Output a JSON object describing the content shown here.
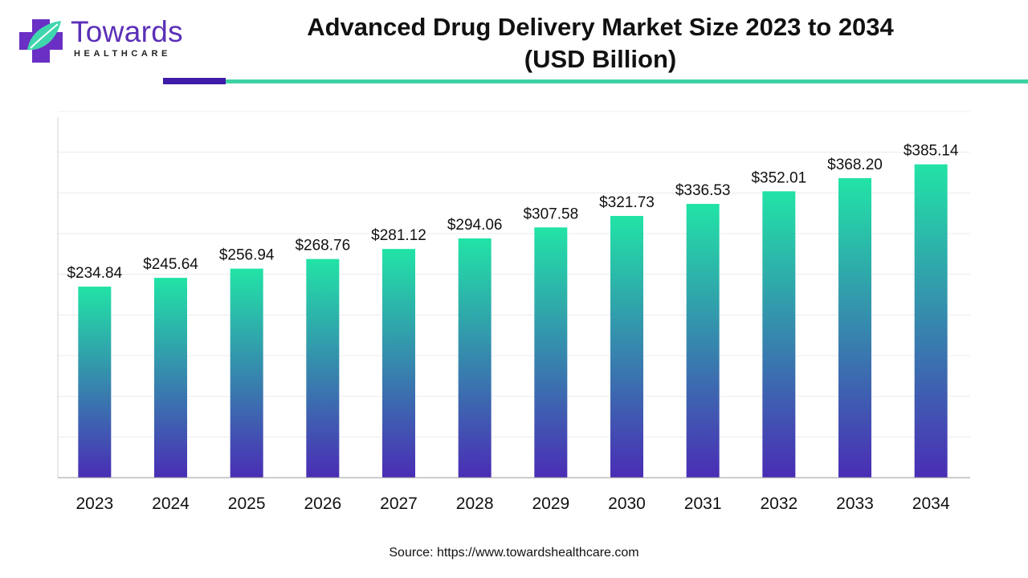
{
  "brand": {
    "name": "Towards",
    "tagline": "HEALTHCARE"
  },
  "header": {
    "title_line1": "Advanced Drug Delivery Market Size 2023 to 2034",
    "title_line2": "(USD Billion)"
  },
  "source": "Source: https://www.towardshealthcare.com",
  "colors": {
    "bar_top": "#22e3a6",
    "bar_bottom": "#4a2db5",
    "accent_dark": "#3e1ba8",
    "accent_light": "#3ed1a3",
    "brand_purple": "#5b2fb8"
  },
  "chart_data": {
    "type": "bar",
    "categories": [
      "2023",
      "2024",
      "2025",
      "2026",
      "2027",
      "2028",
      "2029",
      "2030",
      "2031",
      "2032",
      "2033",
      "2034"
    ],
    "values": [
      234.84,
      245.64,
      256.94,
      268.76,
      281.12,
      294.06,
      307.58,
      321.73,
      336.53,
      352.01,
      368.2,
      385.14
    ],
    "labels": [
      "$234.84",
      "$245.64",
      "$256.94",
      "$268.76",
      "$281.12",
      "$294.06",
      "$307.58",
      "$321.73",
      "$336.53",
      "$352.01",
      "$368.20",
      "$385.14"
    ],
    "title": "Advanced Drug Delivery Market Size 2023 to 2034 (USD Billion)",
    "xlabel": "",
    "ylabel": "",
    "ylim": [
      0,
      450
    ],
    "grid": true,
    "legend": "none"
  }
}
